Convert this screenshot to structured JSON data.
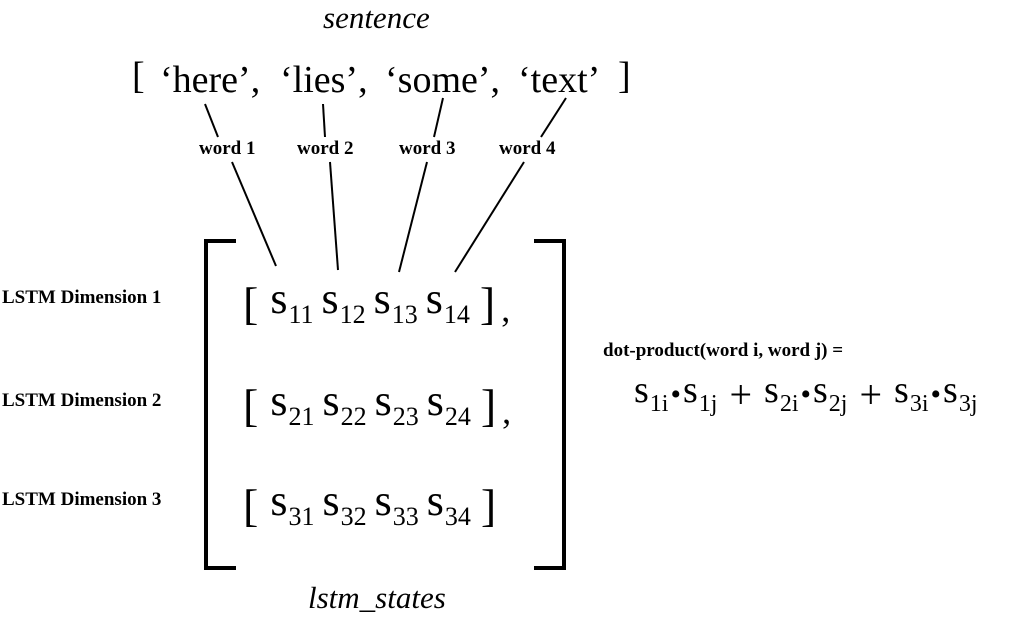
{
  "sentence_label": "sentence",
  "sentence": {
    "open": "[",
    "close": "]",
    "tokens": [
      "‘here’,",
      "‘lies’,",
      "‘some’,",
      "‘text’"
    ]
  },
  "word_labels": [
    "word 1",
    "word 2",
    "word 3",
    "word 4"
  ],
  "lstm_label": "lstm_states",
  "row_labels": [
    "LSTM Dimension 1",
    "LSTM Dimension 2",
    "LSTM Dimension 3"
  ],
  "matrix": {
    "rows": [
      {
        "cells": [
          "11",
          "12",
          "13",
          "14"
        ],
        "trail": ","
      },
      {
        "cells": [
          "21",
          "22",
          "23",
          "24"
        ],
        "trail": ","
      },
      {
        "cells": [
          "31",
          "32",
          "33",
          "34"
        ],
        "trail": ""
      }
    ],
    "symbol": "s",
    "row_open": "[",
    "row_close": "]"
  },
  "dot_product": {
    "label": "dot-product(word i, word j) =",
    "terms": [
      {
        "a": "1i",
        "b": "1j"
      },
      {
        "a": "2i",
        "b": "2j"
      },
      {
        "a": "3i",
        "b": "3j"
      }
    ],
    "dot": "•",
    "plus": "+"
  }
}
